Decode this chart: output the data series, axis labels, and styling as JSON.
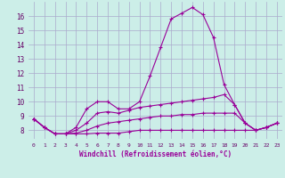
{
  "xlabel": "Windchill (Refroidissement éolien,°C)",
  "background_color": "#cceee8",
  "grid_color": "#aaaacc",
  "line_color": "#990099",
  "x_ticks": [
    0,
    1,
    2,
    3,
    4,
    5,
    6,
    7,
    8,
    9,
    10,
    11,
    12,
    13,
    14,
    15,
    16,
    17,
    18,
    19,
    20,
    21,
    22,
    23
  ],
  "y_ticks": [
    8,
    9,
    10,
    11,
    12,
    13,
    14,
    15,
    16
  ],
  "ylim": [
    7.4,
    17.0
  ],
  "xlim": [
    -0.5,
    23.5
  ],
  "series": [
    [
      8.8,
      8.2,
      7.75,
      7.75,
      8.2,
      9.5,
      10.0,
      10.0,
      9.5,
      9.5,
      10.0,
      11.8,
      13.8,
      15.8,
      16.2,
      16.6,
      16.1,
      14.5,
      11.2,
      9.8,
      8.5,
      8.0,
      8.2,
      8.5
    ],
    [
      8.8,
      8.2,
      7.75,
      7.75,
      8.0,
      8.5,
      9.2,
      9.3,
      9.2,
      9.4,
      9.6,
      9.7,
      9.8,
      9.9,
      10.0,
      10.1,
      10.2,
      10.3,
      10.5,
      9.8,
      8.5,
      8.0,
      8.2,
      8.5
    ],
    [
      8.8,
      8.2,
      7.75,
      7.75,
      7.8,
      8.0,
      8.3,
      8.5,
      8.6,
      8.7,
      8.8,
      8.9,
      9.0,
      9.0,
      9.1,
      9.1,
      9.2,
      9.2,
      9.2,
      9.2,
      8.5,
      8.0,
      8.2,
      8.5
    ],
    [
      8.8,
      8.2,
      7.75,
      7.75,
      7.75,
      7.75,
      7.8,
      7.8,
      7.8,
      7.9,
      8.0,
      8.0,
      8.0,
      8.0,
      8.0,
      8.0,
      8.0,
      8.0,
      8.0,
      8.0,
      8.0,
      8.0,
      8.2,
      8.5
    ]
  ]
}
